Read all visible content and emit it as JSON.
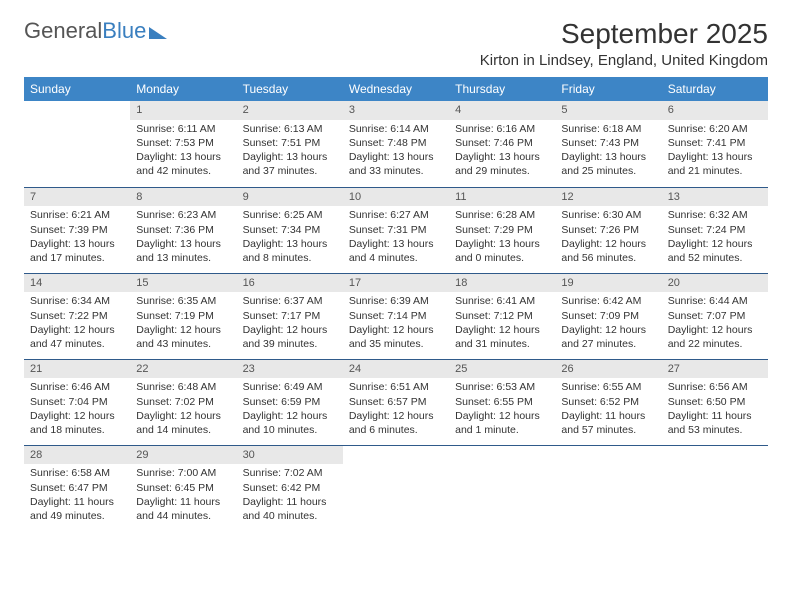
{
  "logo": {
    "text1": "General",
    "text2": "Blue"
  },
  "title": "September 2025",
  "location": "Kirton in Lindsey, England, United Kingdom",
  "colors": {
    "header_bg": "#3d85c6",
    "header_text": "#ffffff",
    "daynum_bg": "#e8e8e8",
    "row_border": "#2f5a8a",
    "logo_blue": "#3a7fbf"
  },
  "day_headers": [
    "Sunday",
    "Monday",
    "Tuesday",
    "Wednesday",
    "Thursday",
    "Friday",
    "Saturday"
  ],
  "weeks": [
    [
      {
        "empty": true
      },
      {
        "n": "1",
        "sr": "Sunrise: 6:11 AM",
        "ss": "Sunset: 7:53 PM",
        "d1": "Daylight: 13 hours",
        "d2": "and 42 minutes."
      },
      {
        "n": "2",
        "sr": "Sunrise: 6:13 AM",
        "ss": "Sunset: 7:51 PM",
        "d1": "Daylight: 13 hours",
        "d2": "and 37 minutes."
      },
      {
        "n": "3",
        "sr": "Sunrise: 6:14 AM",
        "ss": "Sunset: 7:48 PM",
        "d1": "Daylight: 13 hours",
        "d2": "and 33 minutes."
      },
      {
        "n": "4",
        "sr": "Sunrise: 6:16 AM",
        "ss": "Sunset: 7:46 PM",
        "d1": "Daylight: 13 hours",
        "d2": "and 29 minutes."
      },
      {
        "n": "5",
        "sr": "Sunrise: 6:18 AM",
        "ss": "Sunset: 7:43 PM",
        "d1": "Daylight: 13 hours",
        "d2": "and 25 minutes."
      },
      {
        "n": "6",
        "sr": "Sunrise: 6:20 AM",
        "ss": "Sunset: 7:41 PM",
        "d1": "Daylight: 13 hours",
        "d2": "and 21 minutes."
      }
    ],
    [
      {
        "n": "7",
        "sr": "Sunrise: 6:21 AM",
        "ss": "Sunset: 7:39 PM",
        "d1": "Daylight: 13 hours",
        "d2": "and 17 minutes."
      },
      {
        "n": "8",
        "sr": "Sunrise: 6:23 AM",
        "ss": "Sunset: 7:36 PM",
        "d1": "Daylight: 13 hours",
        "d2": "and 13 minutes."
      },
      {
        "n": "9",
        "sr": "Sunrise: 6:25 AM",
        "ss": "Sunset: 7:34 PM",
        "d1": "Daylight: 13 hours",
        "d2": "and 8 minutes."
      },
      {
        "n": "10",
        "sr": "Sunrise: 6:27 AM",
        "ss": "Sunset: 7:31 PM",
        "d1": "Daylight: 13 hours",
        "d2": "and 4 minutes."
      },
      {
        "n": "11",
        "sr": "Sunrise: 6:28 AM",
        "ss": "Sunset: 7:29 PM",
        "d1": "Daylight: 13 hours",
        "d2": "and 0 minutes."
      },
      {
        "n": "12",
        "sr": "Sunrise: 6:30 AM",
        "ss": "Sunset: 7:26 PM",
        "d1": "Daylight: 12 hours",
        "d2": "and 56 minutes."
      },
      {
        "n": "13",
        "sr": "Sunrise: 6:32 AM",
        "ss": "Sunset: 7:24 PM",
        "d1": "Daylight: 12 hours",
        "d2": "and 52 minutes."
      }
    ],
    [
      {
        "n": "14",
        "sr": "Sunrise: 6:34 AM",
        "ss": "Sunset: 7:22 PM",
        "d1": "Daylight: 12 hours",
        "d2": "and 47 minutes."
      },
      {
        "n": "15",
        "sr": "Sunrise: 6:35 AM",
        "ss": "Sunset: 7:19 PM",
        "d1": "Daylight: 12 hours",
        "d2": "and 43 minutes."
      },
      {
        "n": "16",
        "sr": "Sunrise: 6:37 AM",
        "ss": "Sunset: 7:17 PM",
        "d1": "Daylight: 12 hours",
        "d2": "and 39 minutes."
      },
      {
        "n": "17",
        "sr": "Sunrise: 6:39 AM",
        "ss": "Sunset: 7:14 PM",
        "d1": "Daylight: 12 hours",
        "d2": "and 35 minutes."
      },
      {
        "n": "18",
        "sr": "Sunrise: 6:41 AM",
        "ss": "Sunset: 7:12 PM",
        "d1": "Daylight: 12 hours",
        "d2": "and 31 minutes."
      },
      {
        "n": "19",
        "sr": "Sunrise: 6:42 AM",
        "ss": "Sunset: 7:09 PM",
        "d1": "Daylight: 12 hours",
        "d2": "and 27 minutes."
      },
      {
        "n": "20",
        "sr": "Sunrise: 6:44 AM",
        "ss": "Sunset: 7:07 PM",
        "d1": "Daylight: 12 hours",
        "d2": "and 22 minutes."
      }
    ],
    [
      {
        "n": "21",
        "sr": "Sunrise: 6:46 AM",
        "ss": "Sunset: 7:04 PM",
        "d1": "Daylight: 12 hours",
        "d2": "and 18 minutes."
      },
      {
        "n": "22",
        "sr": "Sunrise: 6:48 AM",
        "ss": "Sunset: 7:02 PM",
        "d1": "Daylight: 12 hours",
        "d2": "and 14 minutes."
      },
      {
        "n": "23",
        "sr": "Sunrise: 6:49 AM",
        "ss": "Sunset: 6:59 PM",
        "d1": "Daylight: 12 hours",
        "d2": "and 10 minutes."
      },
      {
        "n": "24",
        "sr": "Sunrise: 6:51 AM",
        "ss": "Sunset: 6:57 PM",
        "d1": "Daylight: 12 hours",
        "d2": "and 6 minutes."
      },
      {
        "n": "25",
        "sr": "Sunrise: 6:53 AM",
        "ss": "Sunset: 6:55 PM",
        "d1": "Daylight: 12 hours",
        "d2": "and 1 minute."
      },
      {
        "n": "26",
        "sr": "Sunrise: 6:55 AM",
        "ss": "Sunset: 6:52 PM",
        "d1": "Daylight: 11 hours",
        "d2": "and 57 minutes."
      },
      {
        "n": "27",
        "sr": "Sunrise: 6:56 AM",
        "ss": "Sunset: 6:50 PM",
        "d1": "Daylight: 11 hours",
        "d2": "and 53 minutes."
      }
    ],
    [
      {
        "n": "28",
        "sr": "Sunrise: 6:58 AM",
        "ss": "Sunset: 6:47 PM",
        "d1": "Daylight: 11 hours",
        "d2": "and 49 minutes."
      },
      {
        "n": "29",
        "sr": "Sunrise: 7:00 AM",
        "ss": "Sunset: 6:45 PM",
        "d1": "Daylight: 11 hours",
        "d2": "and 44 minutes."
      },
      {
        "n": "30",
        "sr": "Sunrise: 7:02 AM",
        "ss": "Sunset: 6:42 PM",
        "d1": "Daylight: 11 hours",
        "d2": "and 40 minutes."
      },
      {
        "empty": true
      },
      {
        "empty": true
      },
      {
        "empty": true
      },
      {
        "empty": true
      }
    ]
  ]
}
